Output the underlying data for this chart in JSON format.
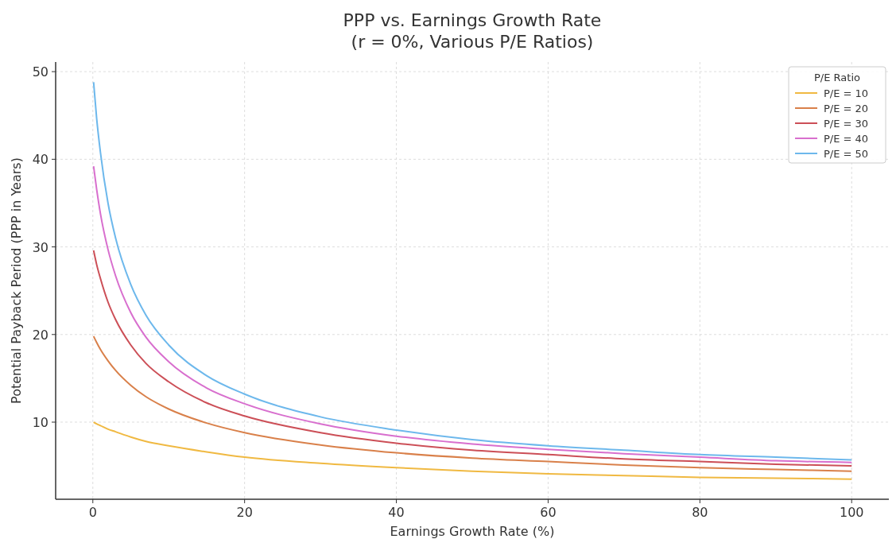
{
  "chart_data": {
    "type": "line",
    "title": "PPP vs. Earnings Growth Rate\n(r = 0%, Various P/E Ratios)",
    "xlabel": "Earnings Growth Rate (%)",
    "ylabel": "Potential Payback Period (PPP in Years)",
    "legend_title": "P/E Ratio",
    "x": [
      0.1,
      0.5,
      1,
      2,
      3,
      5,
      7,
      10,
      15,
      20,
      30,
      40,
      50,
      60,
      70,
      80,
      90,
      100
    ],
    "series": [
      {
        "name": "P/E = 10",
        "color": "#f0b942",
        "values": [
          10.0,
          9.8,
          9.6,
          9.2,
          8.9,
          8.3,
          7.8,
          7.3,
          6.6,
          6.0,
          5.3,
          4.8,
          4.4,
          4.1,
          3.9,
          3.7,
          3.6,
          3.5
        ]
      },
      {
        "name": "P/E = 20",
        "color": "#d9804a",
        "values": [
          19.8,
          19.1,
          18.3,
          17.0,
          15.9,
          14.2,
          12.9,
          11.5,
          9.9,
          8.8,
          7.4,
          6.5,
          5.9,
          5.5,
          5.1,
          4.8,
          4.6,
          4.4
        ]
      },
      {
        "name": "P/E = 30",
        "color": "#cc4f57",
        "values": [
          29.6,
          28.0,
          26.4,
          23.7,
          21.7,
          18.8,
          16.7,
          14.6,
          12.2,
          10.7,
          8.8,
          7.6,
          6.8,
          6.3,
          5.8,
          5.5,
          5.2,
          5.0
        ]
      },
      {
        "name": "P/E = 40",
        "color": "#d86fce",
        "values": [
          39.2,
          36.6,
          33.8,
          29.7,
          26.7,
          22.5,
          19.7,
          16.9,
          13.9,
          12.1,
          9.8,
          8.4,
          7.5,
          6.9,
          6.4,
          6.0,
          5.6,
          5.4
        ]
      },
      {
        "name": "P/E = 50",
        "color": "#6db8ec",
        "values": [
          48.8,
          44.7,
          40.8,
          35.0,
          31.0,
          25.7,
          22.2,
          18.8,
          15.3,
          13.2,
          10.6,
          9.1,
          8.0,
          7.3,
          6.8,
          6.3,
          6.0,
          5.7
        ]
      }
    ],
    "xlim": [
      -4.9,
      104.9
    ],
    "ylim": [
      1.2,
      51.1
    ],
    "xticks": [
      0,
      20,
      40,
      60,
      80,
      100
    ],
    "yticks": [
      10,
      20,
      30,
      40,
      50
    ],
    "grid": true,
    "legend": "top right",
    "line_style": "solid",
    "marker": "none"
  }
}
